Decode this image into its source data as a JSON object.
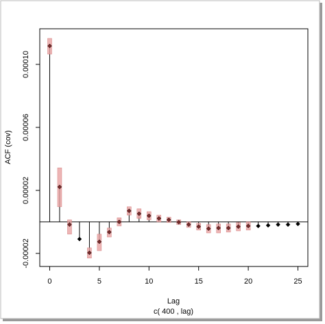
{
  "chart_data": {
    "type": "acf",
    "x_label": "Lag",
    "x_sublabel": "c( 400 , lag)",
    "y_label": "ACF (cov)",
    "x": [
      0,
      1,
      2,
      3,
      4,
      5,
      6,
      7,
      8,
      9,
      10,
      11,
      12,
      13,
      14,
      15,
      16,
      17,
      18,
      19,
      20,
      21,
      22,
      23,
      24,
      25
    ],
    "series": [
      {
        "color": "#000000",
        "ci_color": "#e8a3a3",
        "values": [
          0.0001117,
          2.22e-05,
          -1.7e-06,
          -1.09e-05,
          -1.96e-05,
          -1.26e-05,
          -6.5e-06,
          0,
          7e-06,
          5.2e-06,
          3.9e-06,
          2.2e-06,
          1.3e-06,
          -2e-07,
          -1.7e-06,
          -3e-06,
          -4.3e-06,
          -3.9e-06,
          -3.9e-06,
          -3e-06,
          -2.6e-06,
          -2.6e-06,
          -2.2e-06,
          -1.7e-06,
          -1.7e-06,
          -1.3e-06
        ],
        "lower": [
          0.0001065,
          9.6e-06,
          -7.8e-06,
          null,
          -2.3e-05,
          -1.83e-05,
          -9.6e-06,
          -2.6e-06,
          4.3e-06,
          2.2e-06,
          1.3e-06,
          0,
          -4e-07,
          -1.7e-06,
          -3.5e-06,
          -5.2e-06,
          -7e-06,
          -7e-06,
          -6.5e-06,
          -5.7e-06,
          -5.2e-06,
          null,
          null,
          null,
          null,
          null
        ],
        "upper": [
          0.0001165,
          3.43e-05,
          1.3e-06,
          null,
          -1.65e-05,
          -7.8e-06,
          -3.9e-06,
          2.6e-06,
          9.6e-06,
          8.3e-06,
          6.5e-06,
          4.3e-06,
          3e-06,
          1.3e-06,
          0,
          -9e-07,
          -1.7e-06,
          -1.3e-06,
          -1.3e-06,
          -4e-07,
          0,
          null,
          null,
          null,
          null,
          null
        ]
      }
    ],
    "xlim": [
      -1,
      26
    ],
    "ylim": [
      -2.83e-05,
      0.0001226
    ],
    "xticks": [
      0,
      5,
      10,
      15,
      20,
      25
    ],
    "yticks": [
      -2e-05,
      2e-05,
      6e-05,
      {
        "value": 0.0001,
        "label": "0.00010"
      }
    ]
  }
}
